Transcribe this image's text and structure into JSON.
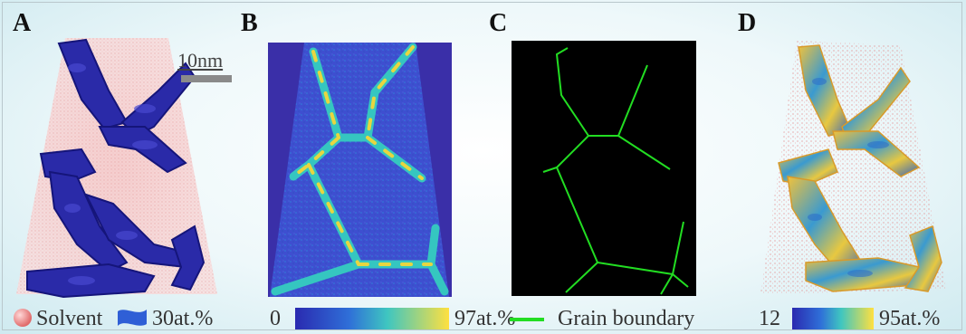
{
  "panels": [
    {
      "letter": "A"
    },
    {
      "letter": "B"
    },
    {
      "letter": "C"
    },
    {
      "letter": "D"
    }
  ],
  "panel_a": {
    "scale_bar": "10nm",
    "legend_solvent": "Solvent",
    "legend_isosurface": "30at.%"
  },
  "panel_b": {
    "colorbar_min": "0",
    "colorbar_max": "97at.%"
  },
  "panel_c": {
    "legend_label": "Grain boundary",
    "line_color": "#22dd22"
  },
  "panel_d": {
    "colorbar_min": "12",
    "colorbar_max": "95at.%"
  },
  "colors": {
    "isosurface": "#2a2aa8",
    "background_map": "#3a45c8",
    "colorbar_low": "#2b2fb0",
    "colorbar_high": "#ffe040"
  }
}
